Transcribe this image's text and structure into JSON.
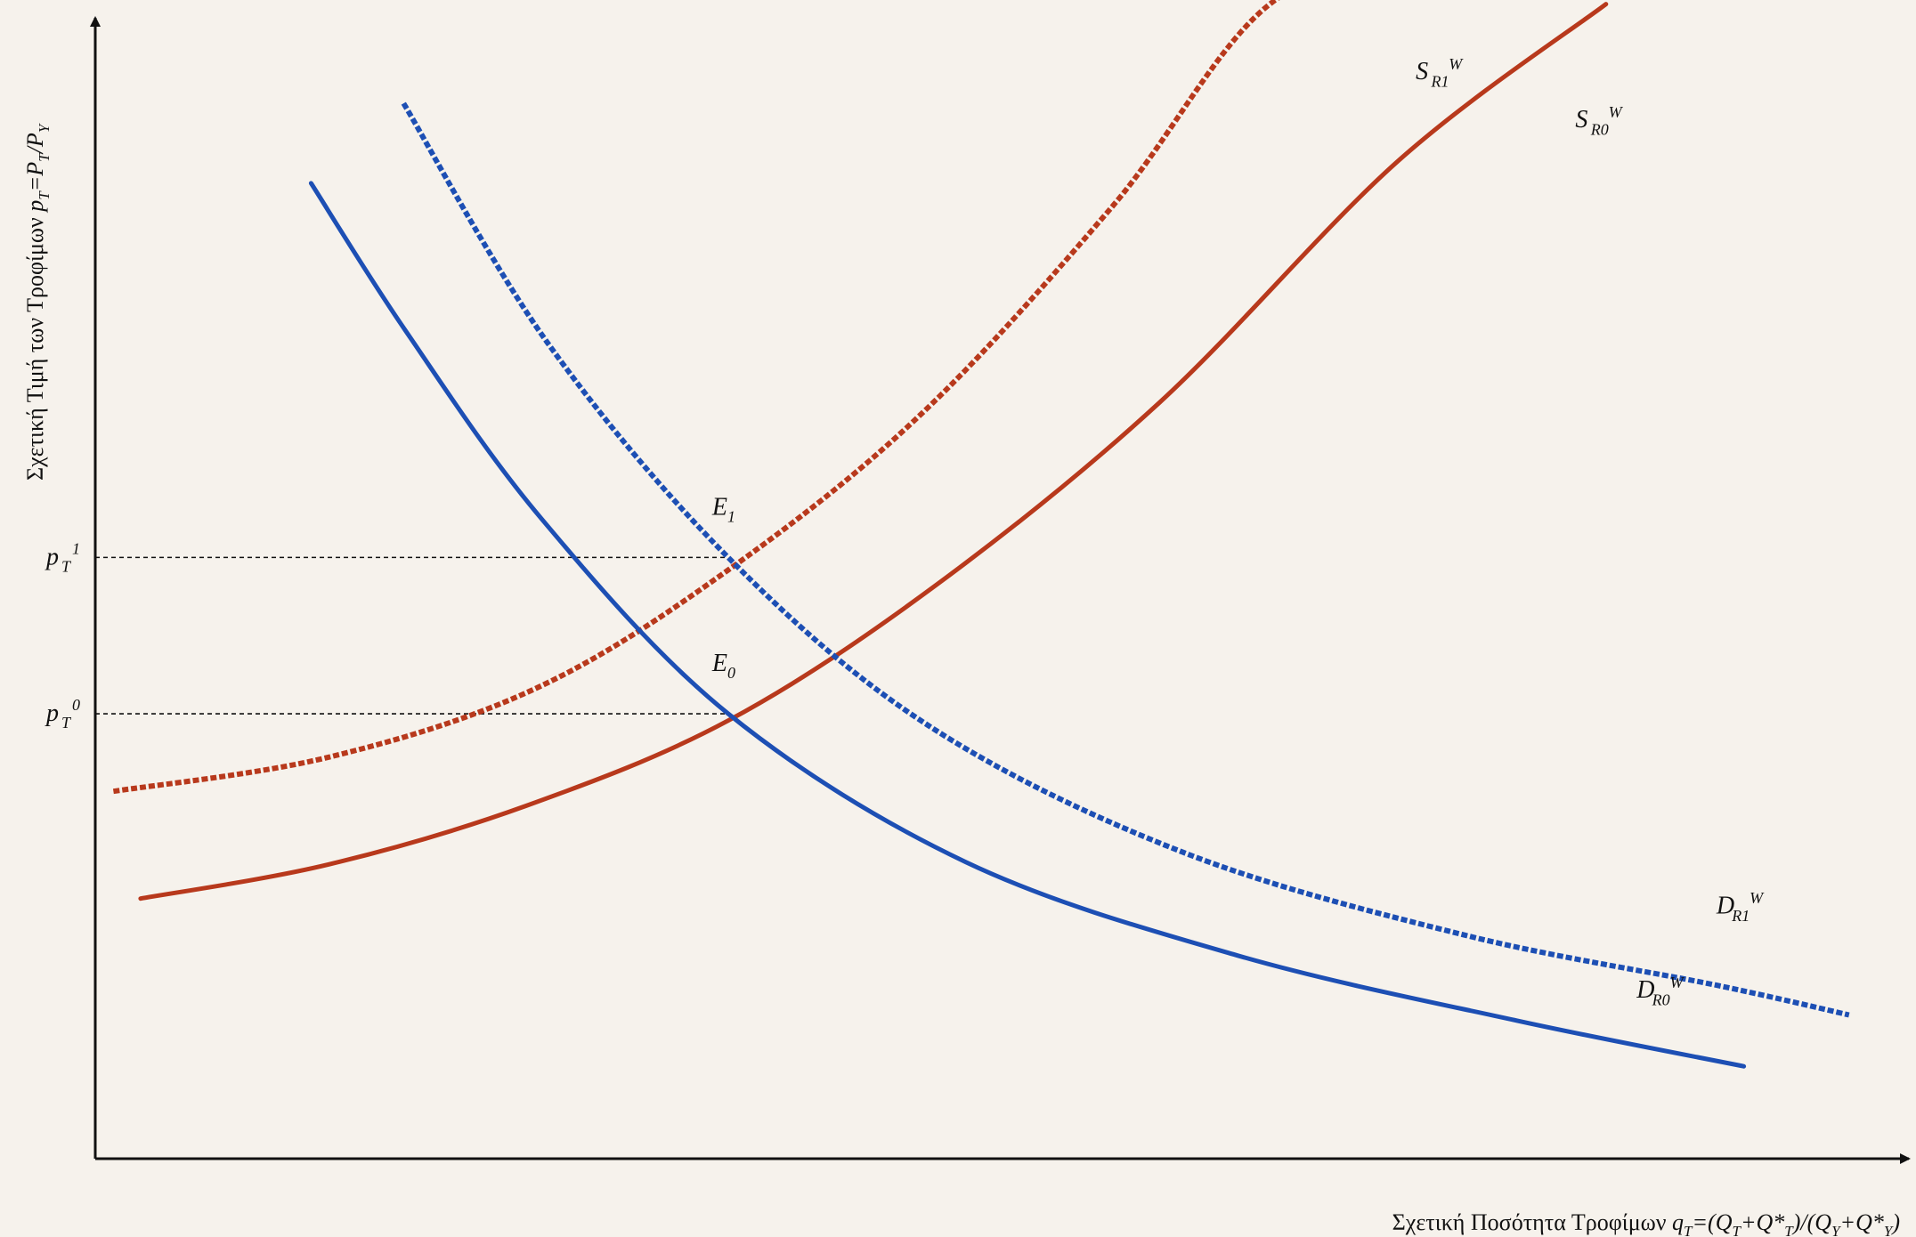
{
  "chart_data": {
    "type": "line",
    "title": "",
    "xlabel": {
      "text": "Σχετική Ποσότητα Τροφίμων ",
      "formula": "q",
      "sub1": "T",
      "formula2": "=(Q",
      "sub2": "T",
      "formula3": "+Q*",
      "sub3": "T",
      "formula4": ")/(Q",
      "sub4": "Y",
      "formula5": "+Q*",
      "sub5": "Y",
      "formula6": ")"
    },
    "ylabel": {
      "text": "Σχετική Τιμή των Τροφίμων ",
      "formula": "p",
      "sub1": "T",
      "formula2": "=P",
      "sub2": "T",
      "formula3": "/P",
      "sub3": "Y"
    },
    "xlim": [
      0,
      100
    ],
    "ylim": [
      0,
      100
    ],
    "grid": false,
    "ticks": {
      "y": [
        {
          "base": "p",
          "sub": "T",
          "sup": "1",
          "value": 52.7
        },
        {
          "base": "p",
          "sub": "T",
          "sup": "0",
          "value": 39.0
        }
      ]
    },
    "series": [
      {
        "id": "S_R0",
        "label": {
          "base": "S",
          "sub": "R0",
          "sup": "W"
        },
        "color": "#b8391c",
        "style": "solid",
        "x": [
          2.5,
          12.9,
          23.7,
          34.9,
          46.3,
          58.7,
          71.8,
          83.3
        ],
        "y": [
          22.8,
          25.8,
          30.9,
          38.4,
          50.2,
          66.3,
          87.4,
          101.2
        ]
      },
      {
        "id": "S_R1",
        "label": {
          "base": "S",
          "sub": "R1",
          "sup": "W"
        },
        "color": "#b8391c",
        "style": "dashed",
        "x": [
          1.0,
          12.9,
          24.4,
          34.9,
          45.5,
          56.1,
          65.1,
          74.8
        ],
        "y": [
          32.2,
          35.2,
          41.3,
          51.6,
          65.2,
          83.5,
          101.6,
          104.5
        ]
      },
      {
        "id": "D_R0",
        "label": {
          "base": "D",
          "sub": "R0",
          "sup": "W"
        },
        "color": "#1d4fb4",
        "style": "solid",
        "x": [
          11.9,
          17.1,
          24.6,
          34.9,
          48.0,
          63.0,
          78.4,
          90.9
        ],
        "y": [
          85.5,
          72.6,
          56.1,
          39.0,
          26.0,
          17.8,
          12.1,
          8.1
        ]
      },
      {
        "id": "D_R1",
        "label": {
          "base": "D",
          "sub": "R1",
          "sup": "W"
        },
        "color": "#1d4fb4",
        "style": "dashed",
        "x": [
          17.0,
          24.9,
          34.9,
          45.9,
          59.9,
          75.5,
          89.4,
          96.7
        ],
        "y": [
          92.5,
          71.6,
          52.7,
          38.0,
          26.9,
          19.6,
          15.2,
          12.6
        ]
      }
    ],
    "annotations": [
      {
        "id": "E0",
        "base": "E",
        "sub": "0",
        "x": 34.9,
        "y": 39.0
      },
      {
        "id": "E1",
        "base": "E",
        "sub": "1",
        "x": 34.9,
        "y": 52.7
      }
    ]
  }
}
